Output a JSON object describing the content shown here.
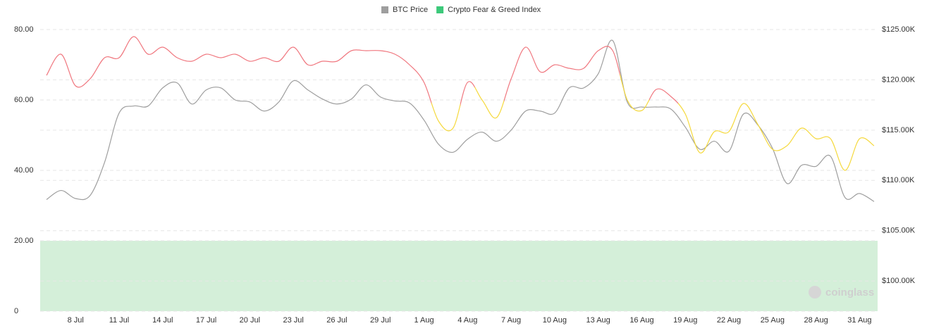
{
  "chart_data": {
    "type": "line",
    "categories": [
      null,
      null,
      "8 Jul",
      null,
      null,
      "11 Jul",
      null,
      null,
      "14 Jul",
      null,
      null,
      "17 Jul",
      null,
      null,
      "20 Jul",
      null,
      null,
      "23 Jul",
      null,
      null,
      "26 Jul",
      null,
      null,
      "29 Jul",
      null,
      null,
      "1 Aug",
      null,
      null,
      "4 Aug",
      null,
      null,
      "7 Aug",
      null,
      null,
      "10 Aug",
      null,
      null,
      "13 Aug",
      null,
      null,
      "16 Aug",
      null,
      null,
      "19 Aug",
      null,
      null,
      "22 Aug",
      null,
      null,
      "25 Aug",
      null,
      null,
      "28 Aug",
      null,
      null,
      "31 Aug",
      null
    ],
    "series": [
      {
        "name": "BTC Price",
        "color": "#9e9e9e",
        "axis": "y2",
        "values": [
          108100,
          109000,
          108200,
          108500,
          111800,
          116700,
          117400,
          117400,
          119200,
          119700,
          117600,
          119000,
          119200,
          118000,
          117800,
          116900,
          117800,
          119900,
          119000,
          118100,
          117600,
          118100,
          119500,
          118300,
          117900,
          117700,
          116000,
          113600,
          112800,
          114100,
          114800,
          113900,
          115000,
          116900,
          116900,
          116700,
          119200,
          119200,
          120600,
          123900,
          117800,
          117300,
          117300,
          117100,
          115300,
          113100,
          113900,
          112900,
          116600,
          115500,
          113200,
          109700,
          111500,
          111400,
          112400,
          108300,
          108700,
          107900
        ]
      },
      {
        "name": "Crypto Fear & Greed Index",
        "color": "#3cc97a",
        "values": [
          67,
          73,
          64,
          66,
          72,
          72,
          78,
          73,
          75,
          72,
          71,
          73,
          72,
          73,
          71,
          72,
          71,
          75,
          70,
          71,
          71,
          74,
          74,
          74,
          73,
          70,
          65,
          54,
          52,
          65,
          60,
          55,
          66,
          75,
          68,
          70,
          69,
          69,
          74,
          74,
          60,
          57,
          63,
          61,
          56,
          45,
          51,
          51,
          59,
          53,
          46,
          47,
          52,
          49,
          49,
          40,
          49,
          47
        ],
        "point_colors": [
          "#f0777f",
          "#f0777f",
          "#f0777f",
          "#f0777f",
          "#f0777f",
          "#f0777f",
          "#f0777f",
          "#f0777f",
          "#f0777f",
          "#f0777f",
          "#f0777f",
          "#f0777f",
          "#f0777f",
          "#f0777f",
          "#f0777f",
          "#f0777f",
          "#f0777f",
          "#f0777f",
          "#f0777f",
          "#f0777f",
          "#f0777f",
          "#f0777f",
          "#f0777f",
          "#f0777f",
          "#f0777f",
          "#f0777f",
          "#f0777f",
          "#f5d93d",
          "#f5d93d",
          "#f0777f",
          "#f5d93d",
          "#f5d93d",
          "#f0777f",
          "#f0777f",
          "#f0777f",
          "#f0777f",
          "#f0777f",
          "#f0777f",
          "#f0777f",
          "#f0777f",
          "#f5d93d",
          "#f5d93d",
          "#f0777f",
          "#f0777f",
          "#f5d93d",
          "#f5d93d",
          "#f5d93d",
          "#f5d93d",
          "#f5d93d",
          "#f5d93d",
          "#f5d93d",
          "#f5d93d",
          "#f5d93d",
          "#f5d93d",
          "#f5d93d",
          "#f5d93d",
          "#f5d93d",
          "#f5d93d"
        ]
      }
    ],
    "ylim": [
      0,
      80
    ],
    "yticks": [
      0,
      {
        "value": 20,
        "label": "20.00"
      },
      {
        "value": 40,
        "label": "40.00"
      },
      {
        "value": 60,
        "label": "60.00"
      },
      {
        "value": 80,
        "label": "80.00"
      }
    ],
    "y2lim": [
      97000,
      125000
    ],
    "y2ticks": [
      {
        "value": 100000,
        "label": "$100.00K"
      },
      {
        "value": 105000,
        "label": "$105.00K"
      },
      {
        "value": 110000,
        "label": "$110.00K"
      },
      {
        "value": 115000,
        "label": "$115.00K"
      },
      {
        "value": 120000,
        "label": "$120.00K"
      },
      {
        "value": 125000,
        "label": "$125.00K"
      }
    ],
    "grid": true,
    "legend": "top",
    "watermark": "coinglass"
  }
}
